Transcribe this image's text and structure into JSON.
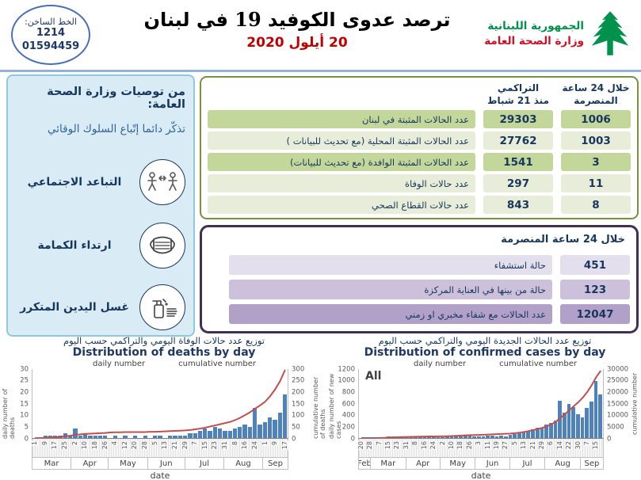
{
  "header": {
    "hotline": {
      "label": "الخط الساخن:",
      "short_number": "1214",
      "long_number": "01594459"
    },
    "title": "ترصد عدوى الكوفيد 19 في لبنان",
    "date": "20 أيلول 2020",
    "ministry": {
      "line1": "الجمهورية اللبنانية",
      "line2": "وزارة الصحة العامة"
    }
  },
  "sidebar": {
    "title": "من توصيات وزارة الصحة العامة:",
    "subtitle": "تذكّر دائما إتّباع السلوك الوقائي",
    "items": [
      {
        "label": "التباعد الاجتماعي",
        "icon": "social-distancing-icon"
      },
      {
        "label": "ارتداء الكمامة",
        "icon": "face-mask-icon"
      },
      {
        "label": "غسل اليدين المتكرر",
        "icon": "hand-washing-icon"
      }
    ]
  },
  "cumulative_table": {
    "header_cumulative_line1": "التراكمي",
    "header_cumulative_line2": "منذ 21 شباط",
    "header_24h_line1": "خلال 24 ساعة",
    "header_24h_line2": "المنصرمة",
    "rows": [
      {
        "label": "عدد الحالات المثبتة في لبنان",
        "cumulative": "29303",
        "last24h": "1006"
      },
      {
        "label": "عدد الحالات المثبتة المحلية  (مع تحديث للبيانات )",
        "cumulative": "27762",
        "last24h": "1003"
      },
      {
        "label": "عدد الحالات المثبتة الوافدة (مع تحديث للبيانات)",
        "cumulative": "1541",
        "last24h": "3"
      },
      {
        "label": "عدد حالات الوفاة",
        "cumulative": "297",
        "last24h": "11"
      },
      {
        "label": "عدد حالات القطاع الصحي",
        "cumulative": "843",
        "last24h": "8"
      }
    ]
  },
  "last24_table": {
    "title": "خلال 24 ساعة المنصرمة",
    "rows": [
      {
        "label": "حالة استشفاء",
        "value": "451"
      },
      {
        "label": "حالة من بينها في العناية المركزة",
        "value": "123"
      },
      {
        "label": "عدد الحالات مع شفاء مخبري او زمني",
        "value": "12047"
      }
    ],
    "row_colors": [
      "#E4DFEC",
      "#CCC0DA",
      "#B1A0C7"
    ]
  },
  "colors": {
    "header_rule": "#95B3D7",
    "bar_blue": "#4F81BD",
    "line_red": "#C0504D",
    "green_border": "#77933C",
    "green_row_dark": "#C4D79B",
    "green_row_light": "#E7EDD9",
    "purple_border": "#403152",
    "navy_text": "#17365D",
    "date_red": "#C00000",
    "sidebar_bg": "#D9ECF5",
    "logo_green": "#00914C",
    "logo_red": "#CE1126"
  },
  "chart_data": [
    {
      "type": "bar",
      "title_ar": "توزيع عدد حالات  الوفاة اليومي والتراكمي حسب اليوم",
      "title_en": "Distribution of deaths by day",
      "legend": [
        "daily number",
        "cumulative number"
      ],
      "xlabel": "date",
      "ylabel_left": "daily number of deaths",
      "ylabel_right": "cumulative number of deaths",
      "ylim_left": [
        0,
        30
      ],
      "ylim_right": [
        0,
        300
      ],
      "yticks_left": [
        0,
        5,
        10,
        15,
        20,
        25,
        30
      ],
      "yticks_right": [
        0,
        50,
        100,
        150,
        200,
        250,
        300
      ],
      "sampling": "values estimated every 4 days, Mar 1 - Sep 20 2020",
      "x_ticks": [
        "1",
        "9",
        "17",
        "25",
        "2",
        "10",
        "18",
        "26",
        "4",
        "12",
        "20",
        "28",
        "5",
        "13",
        "21",
        "29",
        "7",
        "15",
        "23",
        "31",
        "8",
        "16",
        "24",
        "1",
        "9",
        "17"
      ],
      "months": [
        {
          "label": "Mar",
          "days": 31
        },
        {
          "label": "Apr",
          "days": 30
        },
        {
          "label": "May",
          "days": 31
        },
        {
          "label": "Jun",
          "days": 30
        },
        {
          "label": "Jul",
          "days": 31
        },
        {
          "label": "Aug",
          "days": 31
        },
        {
          "label": "Sep",
          "days": 20
        }
      ],
      "daily": [
        0,
        0,
        1,
        1,
        1,
        1,
        2,
        1,
        4,
        1,
        2,
        1,
        1,
        1,
        1,
        0,
        1,
        0,
        1,
        0,
        1,
        0,
        1,
        0,
        1,
        1,
        0,
        1,
        1,
        1,
        1,
        2,
        2,
        3,
        4,
        3,
        5,
        4,
        3,
        3,
        4,
        5,
        6,
        5,
        13,
        6,
        7,
        9,
        8,
        11,
        19
      ],
      "cumulative": [
        0,
        0,
        1,
        2,
        3,
        4,
        8,
        10,
        14,
        16,
        18,
        19,
        20,
        21,
        22,
        24,
        25,
        25,
        26,
        26,
        26,
        26,
        26,
        27,
        27,
        28,
        29,
        30,
        31,
        32,
        33,
        35,
        38,
        41,
        45,
        50,
        55,
        60,
        65,
        70,
        78,
        88,
        100,
        112,
        128,
        142,
        158,
        182,
        212,
        248,
        297
      ],
      "bar_color": "#4F81BD",
      "line_color": "#C0504D"
    },
    {
      "type": "bar",
      "title_ar": "توزيع عدد الحالات الجديدة اليومي والتراكمي حسب اليوم",
      "title_en": "Distribution of confirmed cases by day",
      "annotation": "All",
      "legend": [
        "daily number",
        "cumulative number"
      ],
      "xlabel": "date",
      "ylabel_left": "daily number of new cases",
      "ylabel_right": "cumulative number",
      "ylim_left": [
        0,
        1200
      ],
      "ylim_right": [
        0,
        30000
      ],
      "yticks_left": [
        0,
        200,
        400,
        600,
        800,
        1000,
        1200
      ],
      "yticks_right": [
        0,
        5000,
        10000,
        15000,
        20000,
        25000,
        30000
      ],
      "sampling": "values estimated every 4 days, Feb 20 - Sep 20 2020",
      "x_ticks": [
        "20",
        "28",
        "7",
        "15",
        "23",
        "31",
        "8",
        "16",
        "24",
        "2",
        "10",
        "18",
        "26",
        "3",
        "11",
        "19",
        "27",
        "5",
        "13",
        "21",
        "29",
        "6",
        "14",
        "22",
        "30",
        "7",
        "15"
      ],
      "months": [
        {
          "label": "Feb",
          "days": 10
        },
        {
          "label": "Mar",
          "days": 31
        },
        {
          "label": "Apr",
          "days": 30
        },
        {
          "label": "May",
          "days": 31
        },
        {
          "label": "Jun",
          "days": 30
        },
        {
          "label": "Jul",
          "days": 31
        },
        {
          "label": "Aug",
          "days": 31
        },
        {
          "label": "Sep",
          "days": 20
        }
      ],
      "daily": [
        1,
        2,
        4,
        6,
        9,
        15,
        35,
        25,
        30,
        22,
        18,
        15,
        20,
        12,
        10,
        8,
        14,
        12,
        18,
        25,
        30,
        40,
        35,
        62,
        45,
        28,
        30,
        22,
        40,
        38,
        28,
        45,
        35,
        50,
        65,
        85,
        105,
        130,
        155,
        175,
        185,
        230,
        260,
        310,
        650,
        440,
        600,
        540,
        420,
        360,
        520,
        640,
        1000,
        760
      ],
      "cumulative": [
        1,
        3,
        7,
        13,
        40,
        90,
        180,
        270,
        350,
        420,
        470,
        520,
        570,
        610,
        640,
        670,
        700,
        720,
        740,
        790,
        850,
        950,
        1050,
        1160,
        1250,
        1300,
        1350,
        1400,
        1500,
        1600,
        1680,
        1780,
        1860,
        1950,
        2100,
        2350,
        2650,
        3000,
        3450,
        3900,
        4400,
        5000,
        5900,
        7000,
        8600,
        10300,
        12000,
        13800,
        15500,
        17500,
        20000,
        23000,
        26500,
        29303
      ],
      "bar_color": "#4F81BD",
      "line_color": "#C0504D"
    }
  ]
}
